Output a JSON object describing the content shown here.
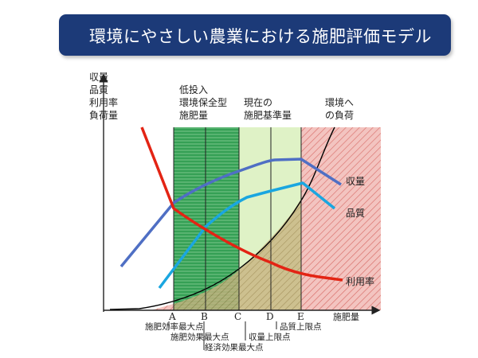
{
  "title": "環境にやさしい農業における施肥評価モデル",
  "y_axis_label": [
    "収量",
    "品質",
    "利用率",
    "負荷量"
  ],
  "x_axis_label": "施肥量",
  "zone_labels": {
    "low_input": [
      "低投入",
      "環境保全型",
      "施肥量"
    ],
    "current": [
      "現在の",
      "施肥基準量"
    ],
    "load": [
      "環境へ",
      "の負荷"
    ]
  },
  "points": [
    "A",
    "B",
    "C",
    "D",
    "E"
  ],
  "point_annotations": {
    "A": "施肥効率最大点",
    "B": "施肥効果最大点",
    "B2": "経済効果最大点",
    "D": "収量上限点",
    "E": "品質上限点"
  },
  "series_labels": {
    "yield": "収量",
    "quality": "品質",
    "utilization": "利用率"
  },
  "colors": {
    "banner": "#1c3a78",
    "yield": "#4f6fc4",
    "quality": "#1aa6e0",
    "utilization": "#e32414",
    "low_input_zone": "#2f9a52",
    "current_zone": "#dff2c6",
    "load_zone": "#f1b5b2"
  }
}
